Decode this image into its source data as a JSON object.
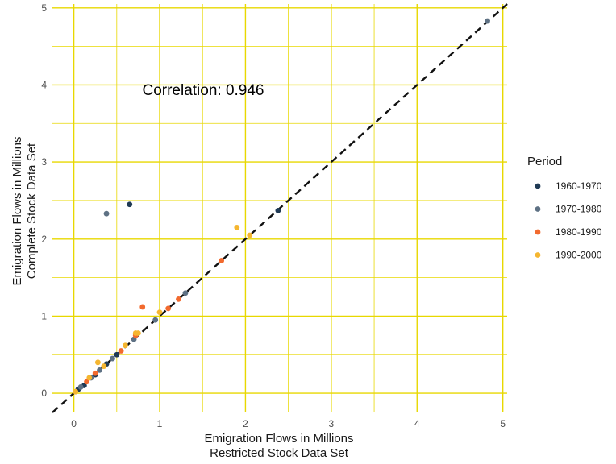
{
  "chart_data": {
    "type": "scatter",
    "title": "",
    "xlabel": [
      "Emigration Flows in Millions",
      "Restricted Stock Data Set"
    ],
    "ylabel": [
      "Emigration Flows in Millions",
      "Complete Stock Data Set"
    ],
    "xlim": [
      -0.25,
      5.05
    ],
    "ylim": [
      -0.25,
      5.05
    ],
    "x_ticks": [
      0,
      1,
      2,
      3,
      4,
      5
    ],
    "y_ticks": [
      0,
      1,
      2,
      3,
      4,
      5
    ],
    "grid": true,
    "grid_color": "#e8d800",
    "reference_line": "y = x (dashed)",
    "annotation": "Correlation: 0.946",
    "legend": {
      "title": "Period",
      "position": "right",
      "entries": [
        "1960-1970",
        "1970-1980",
        "1980-1990",
        "1990-2000"
      ]
    },
    "series": [
      {
        "name": "1960-1970",
        "color": "#1f3a55",
        "points": [
          [
            0.65,
            2.45
          ],
          [
            2.38,
            2.37
          ],
          [
            0.05,
            0.05
          ],
          [
            0.12,
            0.1
          ],
          [
            0.25,
            0.24
          ],
          [
            0.38,
            0.38
          ],
          [
            0.5,
            0.5
          ]
        ]
      },
      {
        "name": "1970-1980",
        "color": "#5e7184",
        "points": [
          [
            0.38,
            2.33
          ],
          [
            4.82,
            4.83
          ],
          [
            1.3,
            1.3
          ],
          [
            0.95,
            0.95
          ],
          [
            0.08,
            0.08
          ],
          [
            0.2,
            0.2
          ],
          [
            0.3,
            0.3
          ],
          [
            0.45,
            0.45
          ],
          [
            0.7,
            0.7
          ]
        ]
      },
      {
        "name": "1980-1990",
        "color": "#f26a2e",
        "points": [
          [
            0.8,
            1.12
          ],
          [
            1.72,
            1.72
          ],
          [
            1.22,
            1.22
          ],
          [
            1.1,
            1.1
          ],
          [
            0.15,
            0.15
          ],
          [
            0.25,
            0.26
          ],
          [
            0.55,
            0.55
          ],
          [
            0.72,
            0.75
          ]
        ]
      },
      {
        "name": "1990-2000",
        "color": "#f5b630",
        "points": [
          [
            1.9,
            2.15
          ],
          [
            2.05,
            2.05
          ],
          [
            0.72,
            0.78
          ],
          [
            0.28,
            0.4
          ],
          [
            1.0,
            1.05
          ],
          [
            0.18,
            0.2
          ],
          [
            0.35,
            0.35
          ],
          [
            0.6,
            0.62
          ],
          [
            0.75,
            0.78
          ],
          [
            0.02,
            0.02
          ]
        ]
      }
    ]
  }
}
